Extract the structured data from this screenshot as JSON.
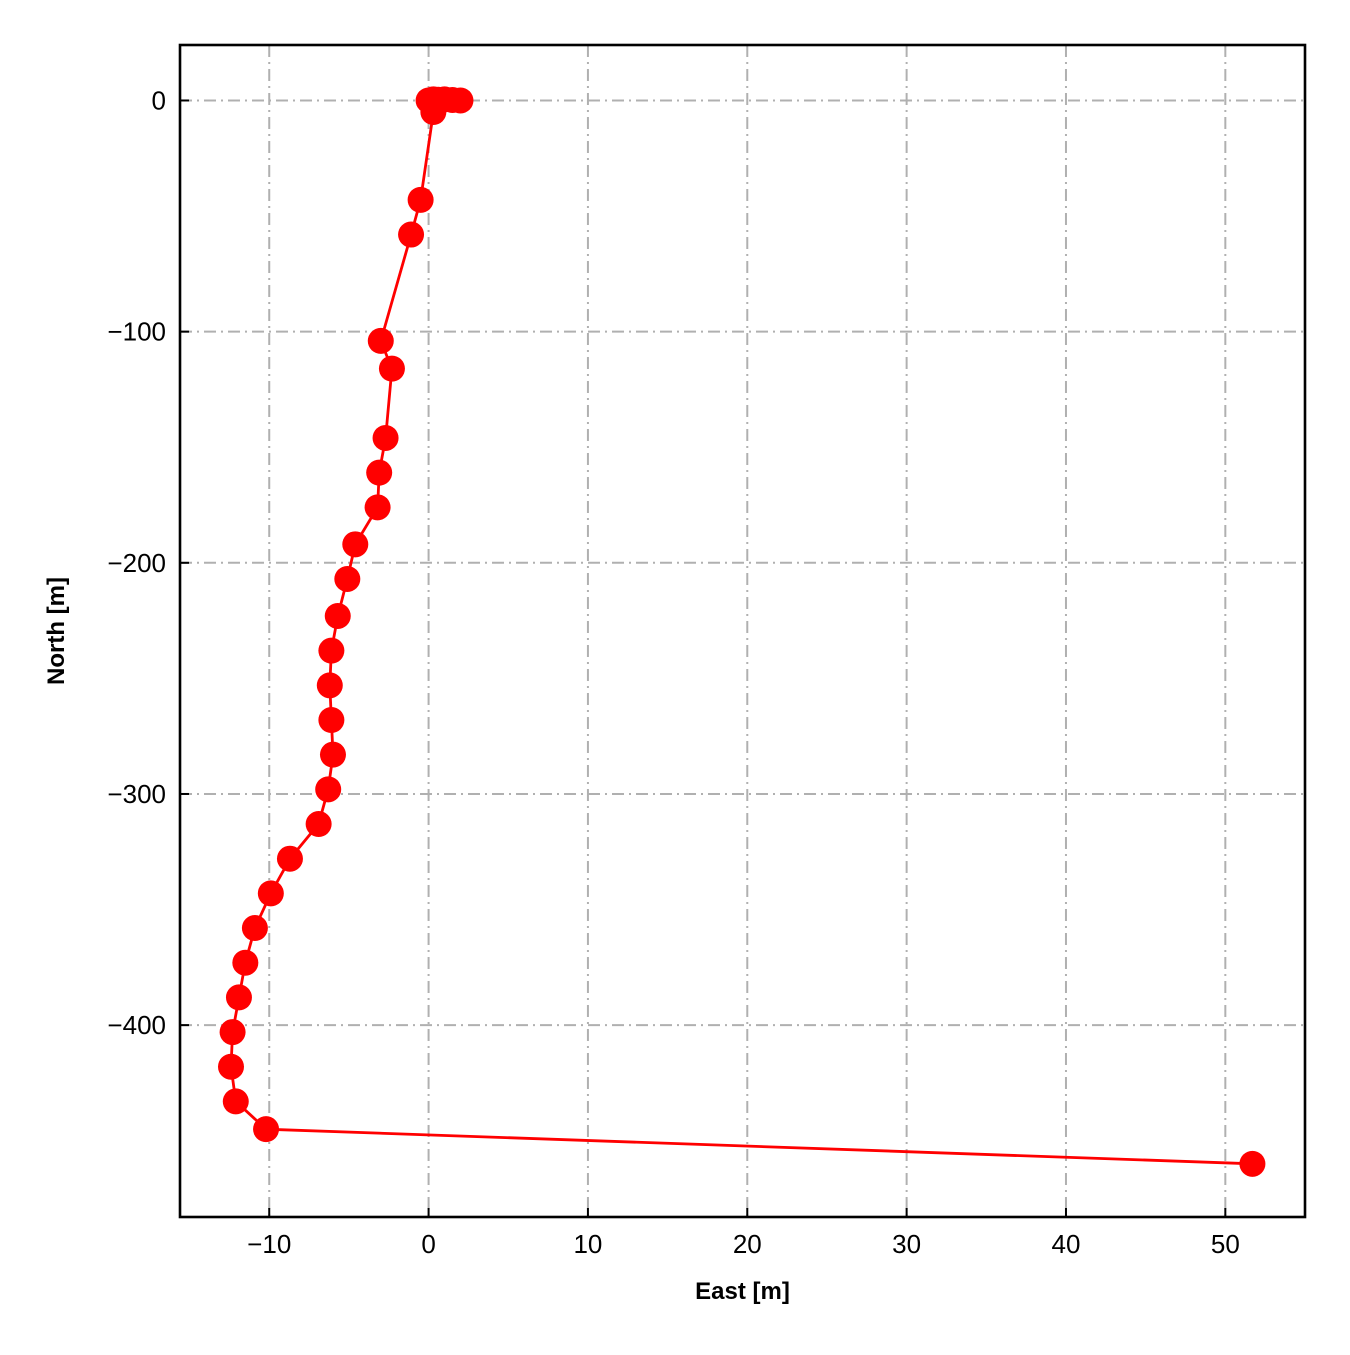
{
  "chart_data": {
    "type": "line",
    "title": "",
    "xlabel": "East [m]",
    "ylabel": "North [m]",
    "xlim": [
      -15.6,
      55
    ],
    "ylim": [
      -483,
      24
    ],
    "xticks": [
      -10,
      0,
      10,
      20,
      30,
      40,
      50
    ],
    "yticks": [
      0,
      -100,
      -200,
      -300,
      -400
    ],
    "xtick_labels": [
      "−10",
      "0",
      "10",
      "20",
      "30",
      "40",
      "50"
    ],
    "ytick_labels": [
      "0",
      "−100",
      "−200",
      "−300",
      "−400"
    ],
    "grid": true,
    "grid_style": "dash-dot",
    "series": [
      {
        "color": "#ff0000",
        "marker": "circle",
        "points": [
          [
            0.0,
            0.0
          ],
          [
            0.3,
            0.5
          ],
          [
            0.6,
            0.3
          ],
          [
            1.0,
            0.5
          ],
          [
            1.5,
            0.2
          ],
          [
            2.0,
            0.0
          ],
          [
            0.3,
            -5
          ],
          [
            -0.5,
            -43
          ],
          [
            -1.1,
            -58
          ],
          [
            -3.0,
            -104
          ],
          [
            -2.3,
            -116
          ],
          [
            -2.7,
            -146
          ],
          [
            -3.1,
            -161
          ],
          [
            -3.2,
            -176
          ],
          [
            -4.6,
            -192
          ],
          [
            -5.1,
            -207
          ],
          [
            -5.7,
            -223
          ],
          [
            -6.1,
            -238
          ],
          [
            -6.2,
            -253
          ],
          [
            -6.1,
            -268
          ],
          [
            -6.0,
            -283
          ],
          [
            -6.3,
            -298
          ],
          [
            -6.9,
            -313
          ],
          [
            -8.7,
            -328
          ],
          [
            -9.9,
            -343
          ],
          [
            -10.9,
            -358
          ],
          [
            -11.5,
            -373
          ],
          [
            -11.9,
            -388
          ],
          [
            -12.3,
            -403
          ],
          [
            -12.4,
            -418
          ],
          [
            -12.1,
            -433
          ],
          [
            -10.2,
            -445
          ],
          [
            51.7,
            -460
          ]
        ]
      }
    ]
  }
}
